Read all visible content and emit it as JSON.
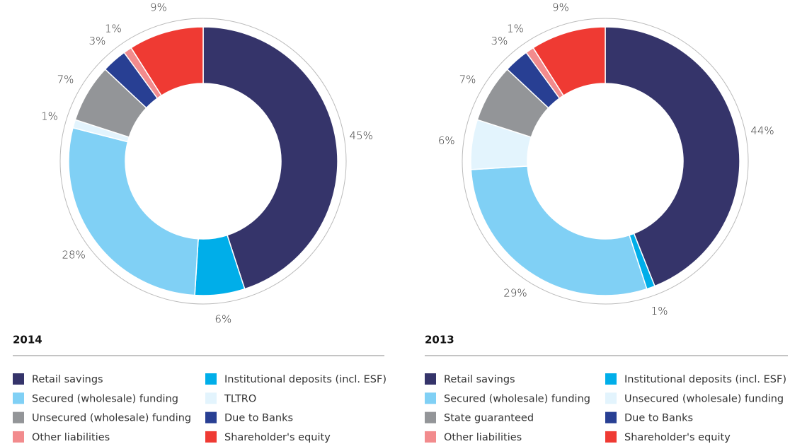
{
  "chart_data": [
    {
      "type": "pie",
      "title": "2014",
      "categories": [
        "Retail savings",
        "Institutional deposits (incl. ESF)",
        "Secured (wholesale) funding",
        "TLTRO",
        "Unsecured (wholesale) funding",
        "Due to Banks",
        "Other liabilities",
        "Shareholder's equity"
      ],
      "values": [
        45,
        6,
        28,
        1,
        7,
        3,
        1,
        9
      ],
      "value_labels": [
        "45%",
        "6%",
        "28%",
        "1%",
        "7%",
        "3%",
        "1%",
        "9%"
      ],
      "colors": [
        "#35346a",
        "#00aee9",
        "#80d0f5",
        "#e3f4fd",
        "#939598",
        "#283f93",
        "#f28b8d",
        "#ef3a33"
      ]
    },
    {
      "type": "pie",
      "title": "2013",
      "categories": [
        "Retail savings",
        "Institutional deposits (incl. ESF)",
        "Secured (wholesale) funding",
        "Unsecured (wholesale) funding",
        "State guaranteed",
        "Due to Banks",
        "Other liabilities",
        "Shareholder's equity"
      ],
      "values": [
        44,
        1,
        29,
        6,
        7,
        3,
        1,
        9
      ],
      "value_labels": [
        "44%",
        "1%",
        "29%",
        "6%",
        "7%",
        "3%",
        "1%",
        "9%"
      ],
      "colors": [
        "#35346a",
        "#00aee9",
        "#80d0f5",
        "#e3f4fd",
        "#939598",
        "#283f93",
        "#f28b8d",
        "#ef3a33"
      ]
    }
  ]
}
